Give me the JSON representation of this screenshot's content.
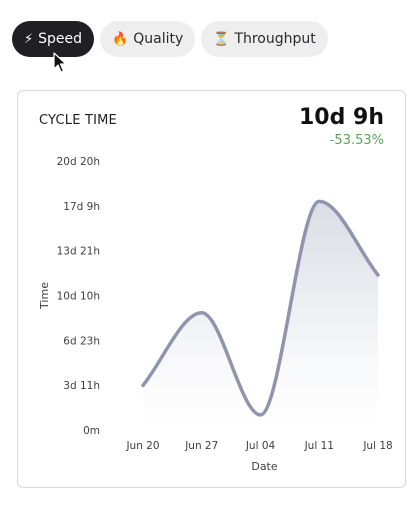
{
  "tabs": [
    {
      "label": "Speed",
      "icon": "lightning-icon",
      "glyph": "⚡",
      "active": true
    },
    {
      "label": "Quality",
      "icon": "fire-icon",
      "glyph": "🔥",
      "active": false
    },
    {
      "label": "Throughput",
      "icon": "hourglass-icon",
      "glyph": "⏳",
      "active": false
    }
  ],
  "card": {
    "title": "CYCLE TIME",
    "value": "10d 9h",
    "delta": "-53.53%"
  },
  "colors": {
    "line": "#8e95ad",
    "delta": "#5aa35a",
    "active_tab": "#1f1f24"
  },
  "chart_data": {
    "type": "area",
    "xlabel": "Date",
    "ylabel": "Time",
    "x": [
      "Jun 20",
      "Jun 27",
      "Jul 04",
      "Jul 11",
      "Jul 18"
    ],
    "y_ticks": [
      "0m",
      "3d 11h",
      "6d 23h",
      "10d 10h",
      "13d 21h",
      "17d 9h",
      "20d 20h"
    ],
    "ylim_hours": [
      0,
      500
    ],
    "points": [
      {
        "x": "Jun 20",
        "hours": 83
      },
      {
        "x": "Jun 27",
        "hours": 218
      },
      {
        "x": "Jul 04",
        "hours": 28
      },
      {
        "x": "Jul 11",
        "hours": 425
      },
      {
        "x": "Jul 18",
        "hours": 288
      }
    ],
    "grid": false,
    "legend": "none"
  }
}
